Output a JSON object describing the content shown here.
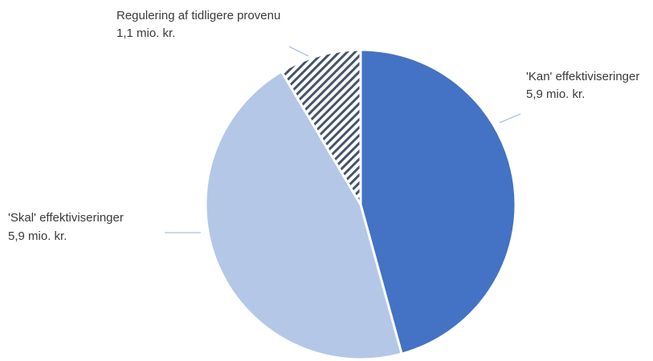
{
  "chart_data": {
    "type": "pie",
    "slices": [
      {
        "label": "'Kan' effektiviseringer",
        "value_text": "5,9 mio. kr.",
        "value": 5.9,
        "color": "#4472c4",
        "pattern": "solid"
      },
      {
        "label": "'Skal' effektiviseringer",
        "value_text": "5,9 mio. kr.",
        "value": 5.9,
        "color": "#b4c7e7",
        "pattern": "solid"
      },
      {
        "label": "Regulering af tidligere provenu",
        "value_text": "1,1 mio. kr.",
        "value": 1.1,
        "color": "#44546a",
        "pattern": "diagonal-hatch"
      }
    ],
    "legend": "none",
    "leader_color": "#a9c1e6"
  }
}
